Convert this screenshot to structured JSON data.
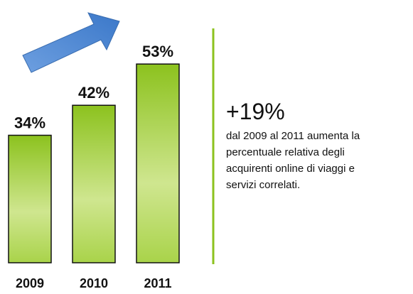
{
  "chart_data": {
    "type": "bar",
    "categories": [
      "2009",
      "2010",
      "2011"
    ],
    "values": [
      34,
      42,
      53
    ],
    "value_labels": [
      "34%",
      "42%",
      "53%"
    ],
    "color": "#8cc21e",
    "annotation": {
      "headline": "+19%",
      "lines": [
        "dal 2009 al 2011 aumenta la",
        "percentuale relativa degli",
        "acquirenti online di viaggi e",
        "servizi correlati."
      ]
    }
  }
}
